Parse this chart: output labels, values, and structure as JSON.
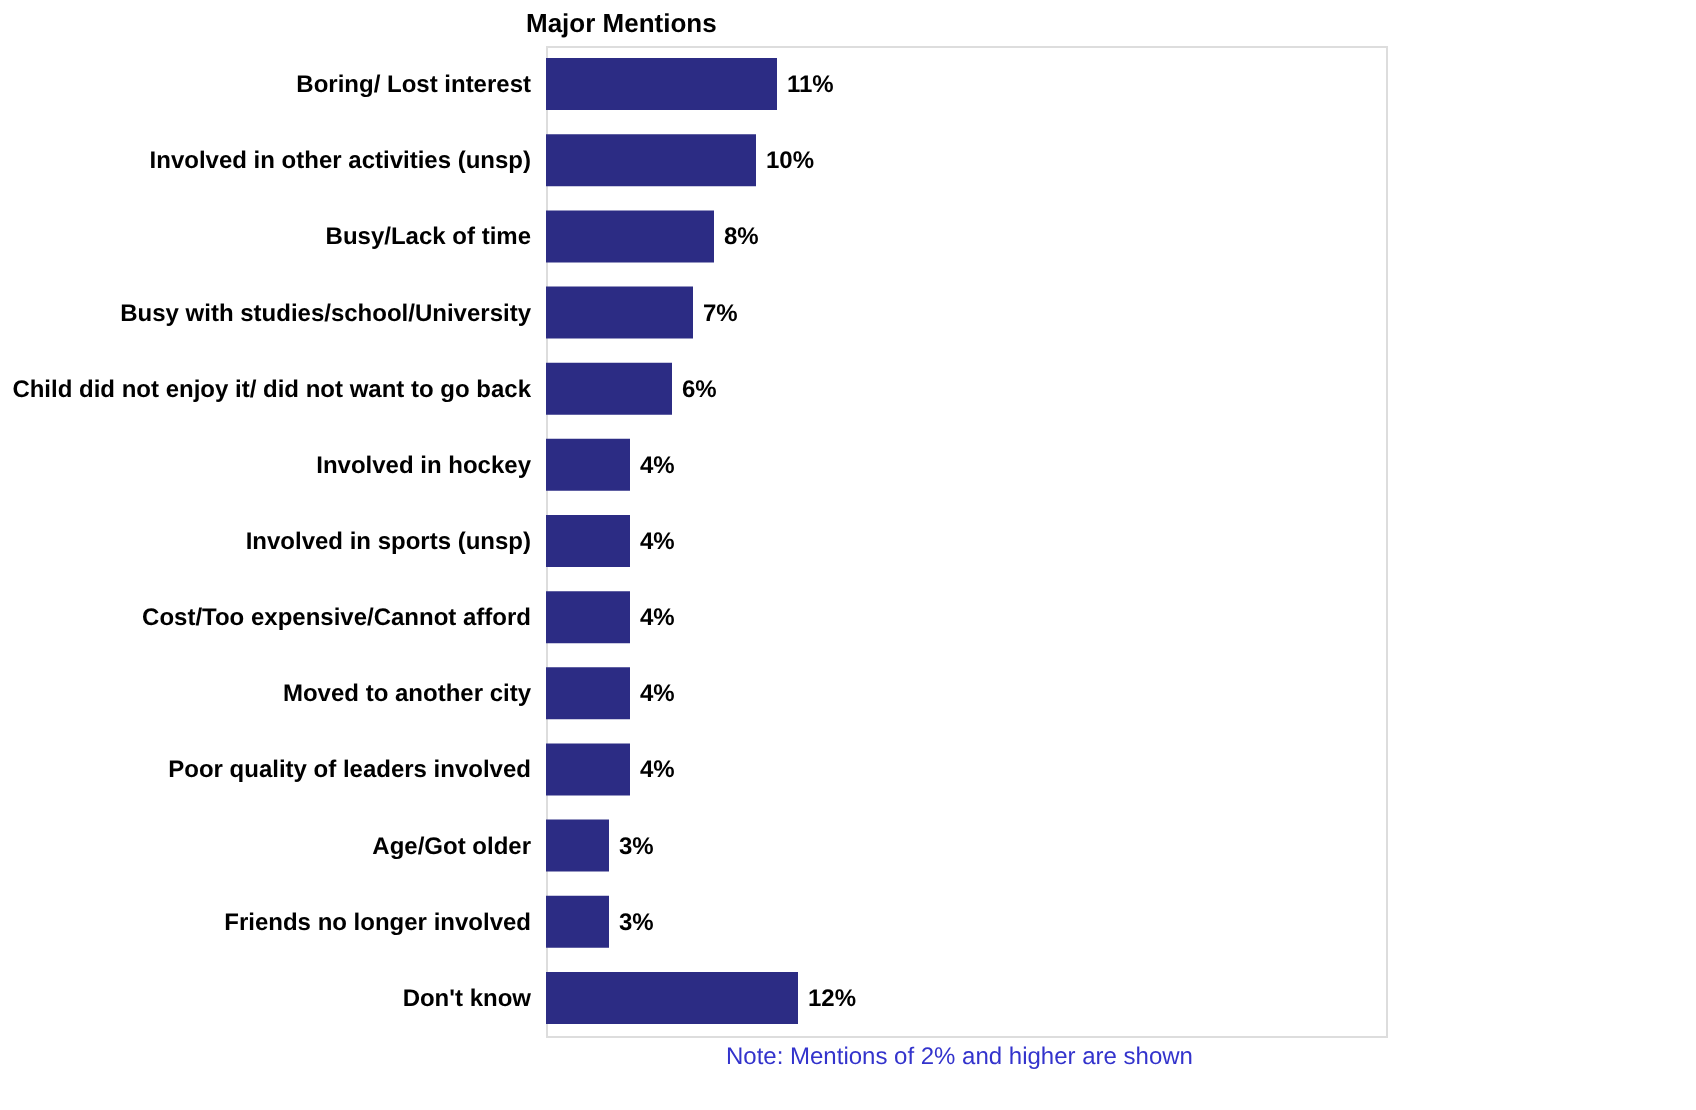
{
  "chart_data": {
    "type": "bar",
    "orientation": "horizontal",
    "title": "Major Mentions",
    "categories": [
      "Boring/ Lost interest",
      "Involved in other activities (unsp)",
      "Busy/Lack of time",
      "Busy with studies/school/University",
      "Child did not enjoy it/ did not want to go back",
      "Involved in hockey",
      "Involved in sports (unsp)",
      "Cost/Too expensive/Cannot afford",
      "Moved to another city",
      "Poor quality of leaders involved",
      "Age/Got older",
      "Friends no longer involved",
      "Don't know"
    ],
    "values": [
      11,
      10,
      8,
      7,
      6,
      4,
      4,
      4,
      4,
      4,
      3,
      3,
      12
    ],
    "value_labels": [
      "11%",
      "10%",
      "8%",
      "7%",
      "6%",
      "4%",
      "4%",
      "4%",
      "4%",
      "4%",
      "3%",
      "3%",
      "12%"
    ],
    "color": "#2c2c84",
    "xlim": [
      0,
      40
    ],
    "tick_labels": "y",
    "grid": false,
    "annotations": [
      "Note: Mentions of 2% and higher are shown"
    ]
  }
}
